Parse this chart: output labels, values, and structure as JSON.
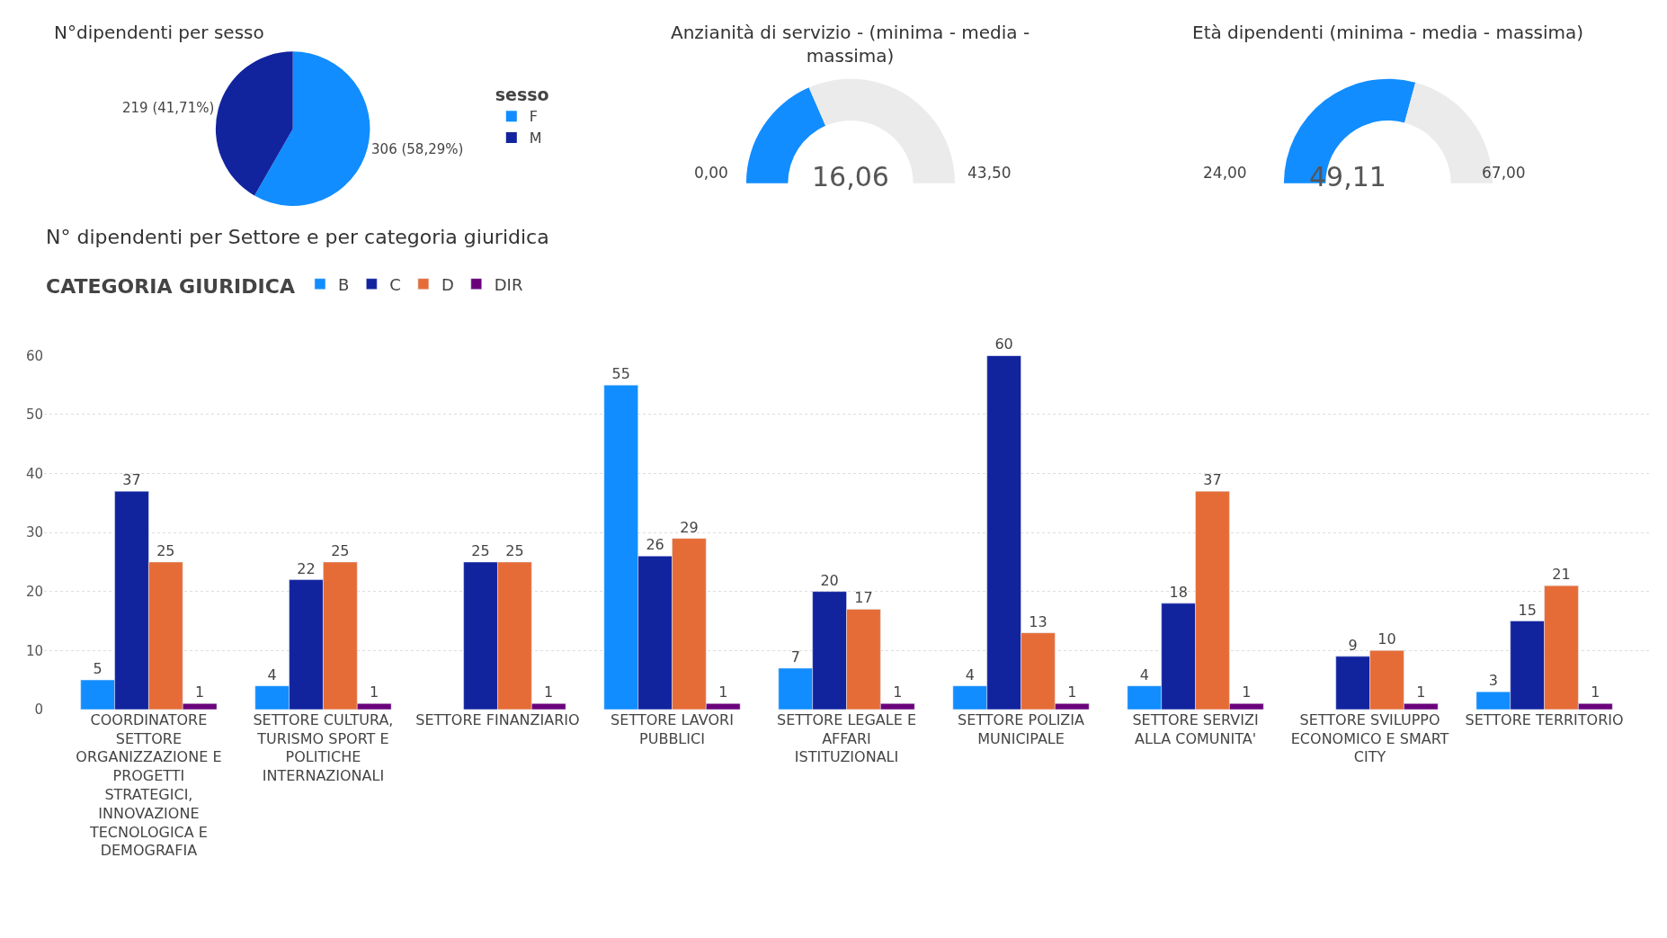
{
  "chart_data": [
    {
      "type": "pie",
      "title": "N°dipendenti per sesso",
      "legend_title": "sesso",
      "legend": "right",
      "categories": [
        "F",
        "M"
      ],
      "values": [
        306,
        219
      ],
      "value_labels": [
        "306 (58,29%)",
        "219 (41,71%)"
      ],
      "colors": [
        "#118dff",
        "#12239e"
      ]
    },
    {
      "type": "donut",
      "title": "Anzianità di servizio - (minima - media - massima)",
      "categories": [
        null,
        null
      ],
      "values": [
        36.92,
        63.08
      ],
      "colors": [
        "#118dff",
        "#ebebeb"
      ],
      "annotations": [
        "0,00",
        "16,06",
        "43,50"
      ]
    },
    {
      "type": "donut",
      "title": "Età dipendenti (minima - media - massima)",
      "categories": [
        null,
        null
      ],
      "values": [
        58.4,
        41.6
      ],
      "colors": [
        "#118dff",
        "#ebebeb"
      ],
      "annotations": [
        "24,00",
        "49,11",
        "67,00"
      ]
    },
    {
      "type": "bar",
      "title": "N° dipendenti per Settore e per categoria giuridica",
      "legend_title": "CATEGORIA GIURIDICA",
      "legend": "top left",
      "data_labels": true,
      "grid": "y",
      "ylim": [
        0,
        60
      ],
      "yticks": [
        0,
        10,
        20,
        30,
        40,
        50,
        60
      ],
      "categories": [
        "COORDINATORE SETTORE ORGANIZZAZIONE E PROGETTI STRATEGICI, INNOVAZIONE TECNOLOGICA E DEMOGRAFIA",
        "SETTORE CULTURA, TURISMO SPORT E POLITICHE INTERNAZIONALI",
        "SETTORE FINANZIARIO",
        "SETTORE LAVORI PUBBLICI",
        "SETTORE LEGALE E AFFARI ISTITUZIONALI",
        "SETTORE POLIZIA MUNICIPALE",
        "SETTORE SERVIZI ALLA COMUNITA'",
        "SETTORE SVILUPPO ECONOMICO E SMART CITY",
        "SETTORE TERRITORIO"
      ],
      "series": [
        {
          "name": "B",
          "color": "#118dff",
          "values": [
            5,
            4,
            null,
            55,
            7,
            4,
            4,
            null,
            3
          ]
        },
        {
          "name": "C",
          "color": "#12239e",
          "values": [
            37,
            22,
            25,
            26,
            20,
            60,
            18,
            9,
            15
          ]
        },
        {
          "name": "D",
          "color": "#e66c37",
          "values": [
            25,
            25,
            25,
            29,
            17,
            13,
            37,
            10,
            21
          ]
        },
        {
          "name": "DIR",
          "color": "#6b007b",
          "values": [
            1,
            1,
            1,
            1,
            1,
            1,
            1,
            1,
            1
          ]
        }
      ]
    }
  ]
}
